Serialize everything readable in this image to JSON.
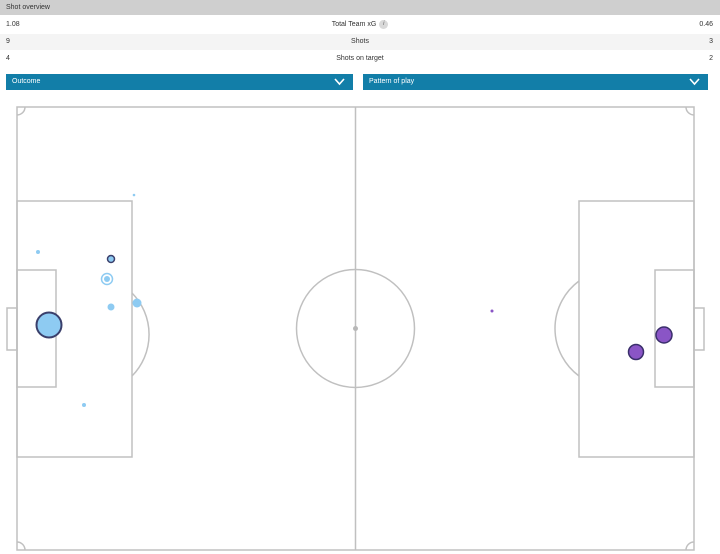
{
  "header": {
    "title": "Shot overview"
  },
  "stats": [
    {
      "home": "1.08",
      "label": "Total Team xG",
      "away": "0.46",
      "has_info": true
    },
    {
      "home": "9",
      "label": "Shots",
      "away": "3",
      "has_info": false
    },
    {
      "home": "4",
      "label": "Shots on target",
      "away": "2",
      "has_info": false
    }
  ],
  "filters": {
    "outcome_label": "Outcome",
    "pattern_label": "Pattern of play"
  },
  "icons": {
    "info": "info-icon",
    "chevron": "chevron-down-icon"
  },
  "colors": {
    "header_bg": "#cfcfcf",
    "dropdown_bg": "#127ea8",
    "pitch_line": "#c0c0c0",
    "home_shot": "#8ecbf2",
    "home_shot_outline": "#3a3f6b",
    "away_shot": "#8a55c6",
    "away_shot_outline": "#3a2f6b"
  }
}
